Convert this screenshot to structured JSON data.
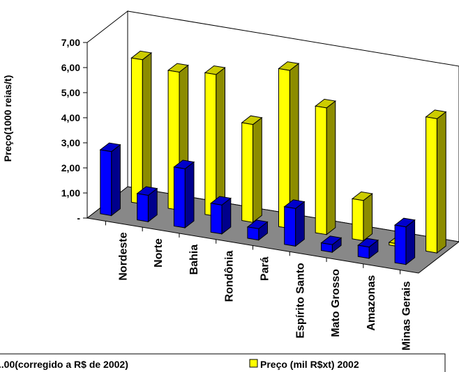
{
  "chart_data": {
    "type": "bar",
    "ylabel": "Preço(1000 reias/t)",
    "ylim": [
      0,
      7
    ],
    "yticks": [
      "-",
      "1,00",
      "2,00",
      "3,00",
      "4,00",
      "5,00",
      "6,00",
      "7,00"
    ],
    "categories": [
      "Nordeste",
      "Norte",
      "Bahia",
      "Rondônia",
      "Pará",
      "Espírito Santo",
      "Mato Grosso",
      "Amazonas",
      "Minas Gerais"
    ],
    "series": [
      {
        "name": "...00(corregido a R$ de 2002)",
        "values": [
          2.55,
          1.05,
          2.35,
          1.15,
          0.45,
          1.5,
          0.3,
          0.45,
          1.5
        ],
        "color": "#0000ff"
      },
      {
        "name": "Preço (mil R$xt) 2002",
        "values": [
          5.75,
          5.5,
          5.65,
          3.9,
          6.3,
          5.05,
          1.6,
          0.1,
          5.35
        ],
        "color": "#ffff00"
      }
    ],
    "style": "3d-clustered-bar",
    "grid": false,
    "legend_position": "bottom"
  },
  "colors": {
    "floor": "#888888",
    "back_wall": "#ffffff",
    "axis": "#000000"
  }
}
